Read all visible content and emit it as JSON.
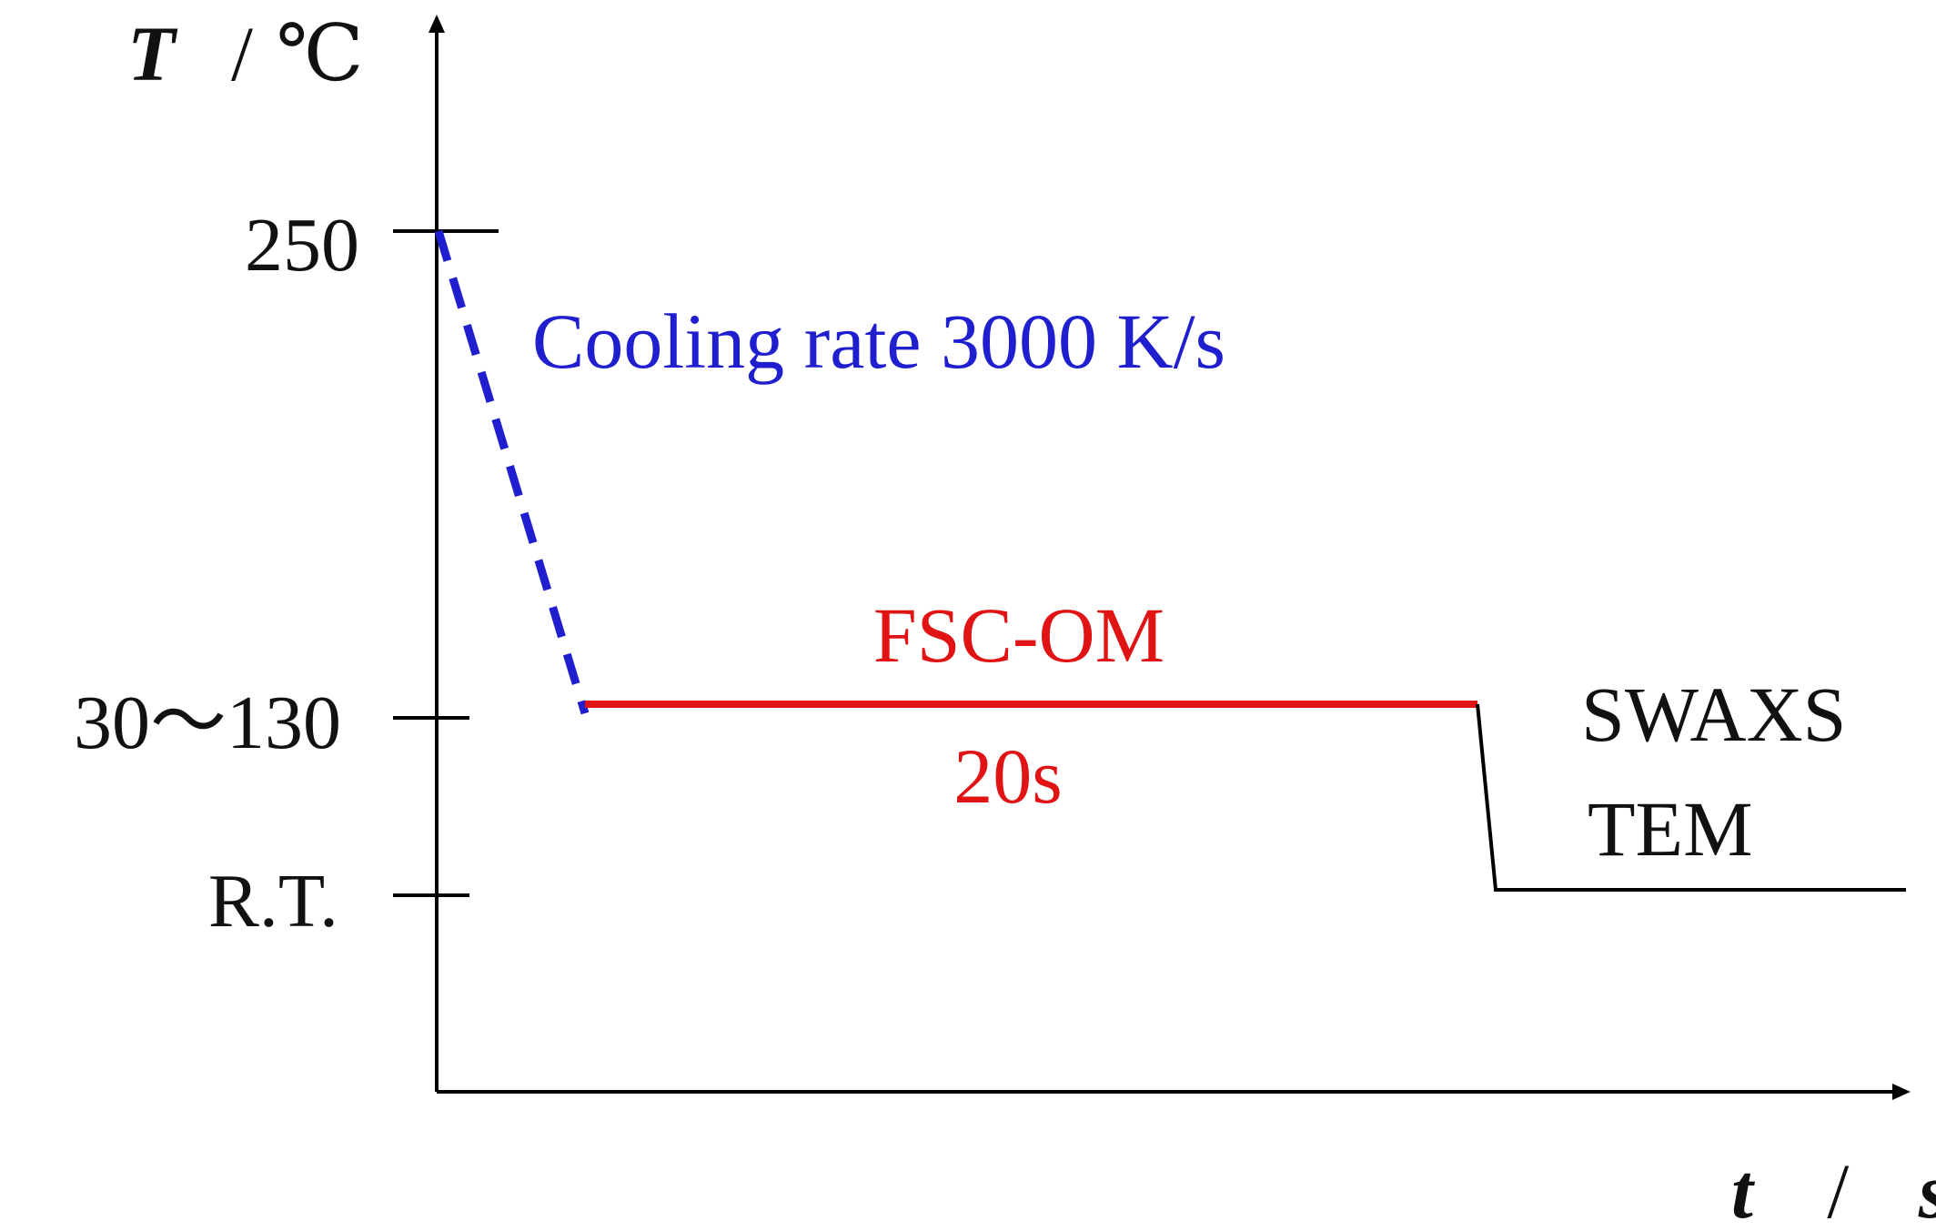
{
  "y_axis": {
    "symbol": "T",
    "separator": "/",
    "unit": "℃",
    "ticks": {
      "high": "250",
      "mid": "30～130",
      "low": "R.T."
    }
  },
  "x_axis": {
    "symbol": "t",
    "separator": "/",
    "unit": "s"
  },
  "segments": {
    "cooling": {
      "label": "Cooling rate 3000 K/s",
      "color": "#1f1fd0",
      "style": "dashed"
    },
    "isothermal": {
      "label_top": "FSC-OM",
      "label_bottom": "20s",
      "color": "#e01414"
    },
    "final": {
      "label_line1": "SWAXS",
      "label_line2": "TEM",
      "color": "#000000"
    }
  },
  "colors": {
    "axis": "#000000",
    "text": "#111111"
  }
}
